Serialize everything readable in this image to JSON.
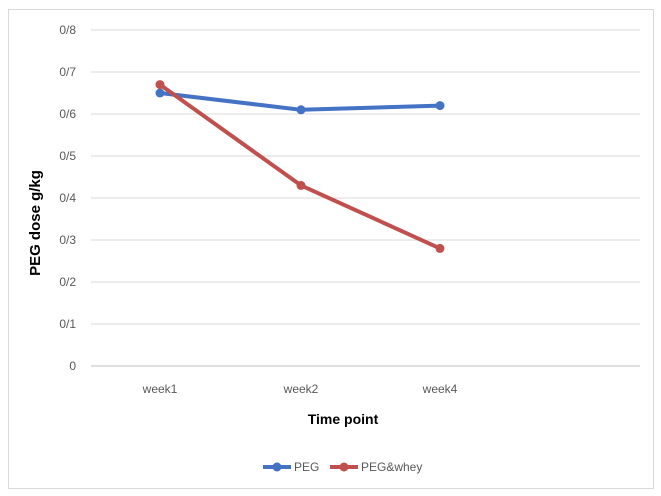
{
  "chart_data": {
    "type": "line",
    "title": "",
    "xlabel": "Time point",
    "ylabel": "PEG dose g/kg",
    "categories": [
      "week1",
      "week2",
      "week4"
    ],
    "y_ticks": [
      "0",
      "0/1",
      "0/2",
      "0/3",
      "0/4",
      "0/5",
      "0/6",
      "0/7",
      "0/8"
    ],
    "ylim": [
      0,
      0.8
    ],
    "grid": true,
    "legend_position": "bottom",
    "series": [
      {
        "name": "PEG",
        "color": "#4472c4",
        "values": [
          0.65,
          0.61,
          0.62
        ]
      },
      {
        "name": "PEG&whey",
        "color": "#c0504d",
        "values": [
          0.67,
          0.43,
          0.28
        ]
      }
    ]
  }
}
